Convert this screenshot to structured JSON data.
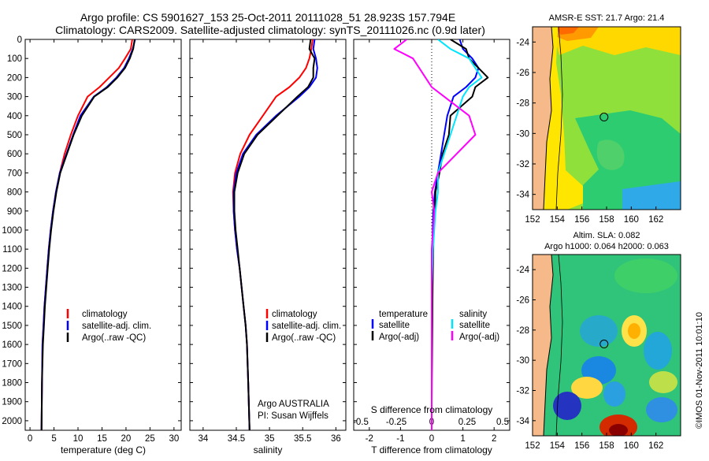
{
  "title": {
    "line1": "Argo profile: CS 5901627_153 25-Oct-2011 20111028_51 28.923S 157.794E",
    "line2": "Climatology: CARS2009. Satellite-adjusted climatology: synTS_20111026.nc (0.9d later)"
  },
  "colors": {
    "climatology": "#ff0000",
    "satellite": "#0000ff",
    "argo": "#000000",
    "sat_salt": "#00e5ff",
    "argo_salt": "#ff00ff"
  },
  "depth_axis": {
    "ylim": [
      0,
      2050
    ],
    "ticks": [
      "0",
      "100",
      "200",
      "300",
      "400",
      "500",
      "600",
      "700",
      "800",
      "900",
      "1000",
      "1100",
      "1200",
      "1300",
      "1400",
      "1500",
      "1600",
      "1700",
      "1800",
      "1900",
      "2000"
    ]
  },
  "chart_data": [
    {
      "type": "line",
      "title": "",
      "xlabel": "temperature (deg C)",
      "ylabel": "",
      "xlim": [
        -1,
        31.5
      ],
      "xticks": [
        "0",
        "5",
        "10",
        "15",
        "20",
        "25",
        "30"
      ],
      "legend": [
        "climatology",
        "satellite-adj. clim.",
        "Argo(..raw -QC)"
      ],
      "series": [
        {
          "name": "climatology",
          "x": [
            21.3,
            21,
            19.8,
            18.5,
            16.5,
            14.5,
            12,
            10,
            8.5,
            7.2,
            6.2,
            5.4,
            4.8,
            4.3,
            3.9,
            3.6,
            3.3,
            3.0,
            2.8,
            2.6,
            2.5,
            2.4
          ],
          "y": [
            0,
            50,
            100,
            150,
            200,
            250,
            300,
            400,
            500,
            600,
            700,
            800,
            900,
            1000,
            1100,
            1200,
            1300,
            1400,
            1500,
            1600,
            1800,
            2050
          ]
        },
        {
          "name": "satellite-adj. clim.",
          "x": [
            21.9,
            21.4,
            20.6,
            19.6,
            18,
            16,
            13.3,
            10.5,
            9,
            7.6,
            6.2,
            5.4,
            4.8,
            4.3,
            3.9,
            3.6,
            3.3,
            3.0,
            2.8,
            2.6,
            2.5,
            2.4
          ],
          "y": [
            0,
            50,
            100,
            150,
            200,
            250,
            300,
            400,
            500,
            600,
            700,
            800,
            900,
            1000,
            1100,
            1200,
            1300,
            1400,
            1500,
            1600,
            1800,
            2050
          ]
        },
        {
          "name": "Argo(..raw -QC)",
          "x": [
            21.8,
            21.5,
            20.8,
            19.8,
            18.2,
            16.2,
            13.4,
            10.8,
            9.1,
            7.7,
            6.3,
            5.5,
            4.9,
            4.4,
            4.0,
            3.7,
            3.4,
            3.1,
            2.9,
            2.7,
            2.5,
            2.4
          ],
          "y": [
            0,
            50,
            100,
            150,
            200,
            250,
            300,
            400,
            500,
            600,
            700,
            800,
            900,
            1000,
            1100,
            1200,
            1300,
            1400,
            1500,
            1600,
            1800,
            2050
          ]
        }
      ]
    },
    {
      "type": "line",
      "xlabel": "salinity",
      "xlim": [
        33.8,
        36.15
      ],
      "xticks": [
        "34",
        "34.5",
        "35",
        "35.5",
        "36"
      ],
      "legend": [
        "climatology",
        "satellite-adj. clim.",
        "Argo(..raw -QC)"
      ],
      "annotation": [
        "Argo AUSTRALIA",
        "PI: Susan Wijffels"
      ],
      "series": [
        {
          "name": "climatology",
          "x": [
            35.65,
            35.63,
            35.6,
            35.55,
            35.45,
            35.3,
            35.1,
            34.9,
            34.7,
            34.56,
            34.48,
            34.45,
            34.46,
            34.48,
            34.51,
            34.55,
            34.58,
            34.61,
            34.64,
            34.66,
            34.68,
            34.7
          ],
          "y": [
            0,
            50,
            100,
            150,
            200,
            250,
            300,
            400,
            500,
            600,
            700,
            800,
            900,
            1000,
            1100,
            1200,
            1300,
            1400,
            1500,
            1600,
            1800,
            2050
          ]
        },
        {
          "name": "satellite-adj. clim.",
          "x": [
            35.68,
            35.66,
            35.7,
            35.72,
            35.7,
            35.6,
            35.45,
            35.1,
            34.8,
            34.6,
            34.5,
            34.46,
            34.46,
            34.48,
            34.51,
            34.55,
            34.58,
            34.61,
            34.64,
            34.66,
            34.68,
            34.7
          ],
          "y": [
            0,
            50,
            100,
            150,
            200,
            250,
            300,
            400,
            500,
            600,
            700,
            800,
            900,
            1000,
            1100,
            1200,
            1300,
            1400,
            1500,
            1600,
            1800,
            2050
          ]
        },
        {
          "name": "Argo(..raw -QC)",
          "x": [
            35.62,
            35.6,
            35.68,
            35.66,
            35.66,
            35.58,
            35.42,
            35.12,
            34.82,
            34.62,
            34.52,
            34.47,
            34.47,
            34.49,
            34.52,
            34.55,
            34.58,
            34.61,
            34.64,
            34.66,
            34.68,
            34.7
          ],
          "y": [
            0,
            50,
            100,
            150,
            200,
            250,
            300,
            400,
            500,
            600,
            700,
            800,
            900,
            1000,
            1100,
            1200,
            1300,
            1400,
            1500,
            1600,
            1800,
            2050
          ]
        }
      ]
    },
    {
      "type": "line",
      "xlabel": "T difference from climatology",
      "top_label": "S difference from climatology",
      "xlim": [
        -2.5,
        2.5
      ],
      "xticks": [
        "-2",
        "-1",
        "0",
        "1",
        "2"
      ],
      "top_ticks": [
        "-0.5",
        "-0.25",
        "0",
        "0.25",
        "0.5"
      ],
      "legend_titles": [
        "temperature",
        "salinity"
      ],
      "legend_t": [
        "satellite",
        "Argo(-adj)"
      ],
      "legend_s": [
        "satellite",
        "Argo(-adj)"
      ],
      "series": [
        {
          "name": "T satellite",
          "x": [
            0.9,
            1.0,
            1.3,
            1.5,
            1.4,
            1.1,
            0.7,
            0.5,
            0.4,
            0.3,
            0.2,
            0.1,
            0.05,
            0.03,
            0.02,
            0.01,
            0,
            0,
            0,
            0
          ],
          "y": [
            0,
            50,
            100,
            150,
            200,
            250,
            300,
            400,
            500,
            600,
            700,
            800,
            900,
            1000,
            1100,
            1300,
            1500,
            1700,
            1900,
            2050
          ]
        },
        {
          "name": "T Argo(-adj)",
          "x": [
            0.6,
            1.1,
            1.2,
            1.5,
            1.8,
            1.4,
            1.3,
            0.6,
            0.55,
            0.35,
            0.25,
            0.12,
            0.1,
            0.06,
            0.05,
            0.03,
            0.02,
            0.01,
            0,
            0
          ],
          "y": [
            0,
            50,
            100,
            150,
            200,
            250,
            300,
            400,
            500,
            600,
            700,
            800,
            900,
            1000,
            1100,
            1300,
            1500,
            1700,
            1900,
            2050
          ]
        },
        {
          "name": "S satellite",
          "x": [
            0.05,
            0.15,
            0.3,
            0.35,
            0.4,
            0.3,
            0.25,
            0.2,
            0.15,
            0.1,
            0.05,
            0.05,
            0.03,
            0.02,
            0.01,
            0,
            0,
            0,
            0,
            0
          ],
          "y": [
            0,
            50,
            100,
            150,
            200,
            250,
            300,
            400,
            500,
            600,
            700,
            800,
            900,
            1000,
            1100,
            1300,
            1500,
            1700,
            1900,
            2050
          ]
        },
        {
          "name": "S Argo(-adj)",
          "x": [
            -0.2,
            -0.3,
            -0.15,
            -0.1,
            -0.05,
            0,
            0.1,
            0.3,
            0.35,
            0.2,
            0.05,
            0,
            0.02,
            0.01,
            0,
            0,
            0,
            0,
            0,
            0
          ],
          "y": [
            0,
            50,
            100,
            150,
            200,
            250,
            300,
            400,
            500,
            600,
            700,
            800,
            900,
            1000,
            1100,
            1300,
            1500,
            1700,
            1900,
            2050
          ]
        }
      ]
    },
    {
      "type": "heatmap",
      "title": "AMSR-E SST: 21.7 Argo: 21.4",
      "xlim": [
        152,
        164
      ],
      "ylim": [
        -35,
        -23
      ],
      "xticks": [
        "152",
        "154",
        "156",
        "158",
        "160",
        "162"
      ],
      "yticks": [
        "-24",
        "-26",
        "-28",
        "-30",
        "-32",
        "-34"
      ],
      "marker": {
        "lon": 157.794,
        "lat": -28.923
      }
    },
    {
      "type": "heatmap",
      "title": "Altim. SLA: 0.082",
      "subtitle": "Argo h1000: 0.064 h2000: 0.063",
      "xlim": [
        152,
        164
      ],
      "ylim": [
        -35,
        -23
      ],
      "xticks": [
        "152",
        "154",
        "156",
        "158",
        "160",
        "162"
      ],
      "yticks": [
        "-24",
        "-26",
        "-28",
        "-30",
        "-32",
        "-34"
      ],
      "marker": {
        "lon": 157.794,
        "lat": -28.923
      }
    }
  ],
  "footer": {
    "stamp": "©IMOS 01-Nov-2011 10:01:10"
  }
}
